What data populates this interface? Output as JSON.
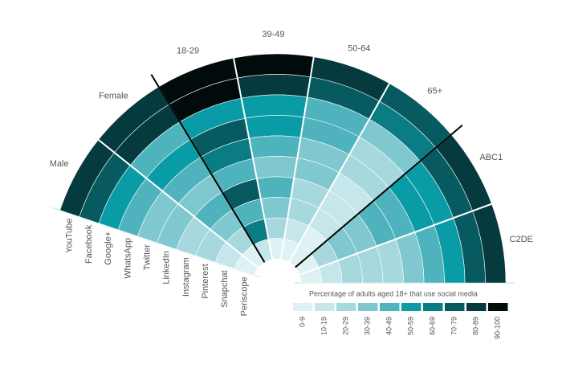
{
  "chart_data": {
    "type": "radial_heatmap",
    "categories": [
      "Male",
      "Female",
      "18-29",
      "39-49",
      "50-64",
      "65+",
      "ABC1",
      "C2DE"
    ],
    "series": [
      {
        "name": "YouTube",
        "values": [
          85,
          85,
          95,
          95,
          85,
          75,
          85,
          85
        ]
      },
      {
        "name": "Facebook",
        "values": [
          75,
          85,
          95,
          85,
          75,
          65,
          75,
          75
        ]
      },
      {
        "name": "Google+",
        "values": [
          55,
          45,
          55,
          55,
          45,
          35,
          55,
          55
        ]
      },
      {
        "name": "WhatsApp",
        "values": [
          45,
          55,
          75,
          55,
          45,
          25,
          55,
          45
        ]
      },
      {
        "name": "Twitter",
        "values": [
          35,
          45,
          65,
          45,
          35,
          25,
          45,
          35
        ]
      },
      {
        "name": "LinkedIn",
        "values": [
          35,
          35,
          45,
          35,
          35,
          15,
          45,
          25
        ]
      },
      {
        "name": "Instagram",
        "values": [
          25,
          45,
          75,
          45,
          25,
          15,
          35,
          25
        ]
      },
      {
        "name": "Pinterest",
        "values": [
          25,
          35,
          45,
          35,
          25,
          15,
          35,
          25
        ]
      },
      {
        "name": "Snapchat",
        "values": [
          15,
          25,
          65,
          25,
          15,
          5,
          25,
          15
        ]
      },
      {
        "name": "Periscope",
        "values": [
          5,
          5,
          15,
          5,
          5,
          5,
          5,
          5
        ]
      }
    ],
    "group_dividers": [
      2,
      6
    ],
    "legend_title": "Percentage of adults aged 18+ that use social media",
    "bins": [
      {
        "label": "0-9",
        "min": 0,
        "color": "#dff1f3"
      },
      {
        "label": "10-19",
        "min": 10,
        "color": "#c5e6ea"
      },
      {
        "label": "20-29",
        "min": 20,
        "color": "#a6d8de"
      },
      {
        "label": "30-39",
        "min": 30,
        "color": "#7fc8cf"
      },
      {
        "label": "40-49",
        "min": 40,
        "color": "#4fb3bd"
      },
      {
        "label": "50-59",
        "min": 50,
        "color": "#0a9ca6"
      },
      {
        "label": "60-69",
        "min": 60,
        "color": "#0a7c84"
      },
      {
        "label": "70-79",
        "min": 70,
        "color": "#075a60"
      },
      {
        "label": "80-89",
        "min": 80,
        "color": "#053a3e"
      },
      {
        "label": "90-100",
        "min": 90,
        "color": "#020b0c"
      }
    ]
  }
}
